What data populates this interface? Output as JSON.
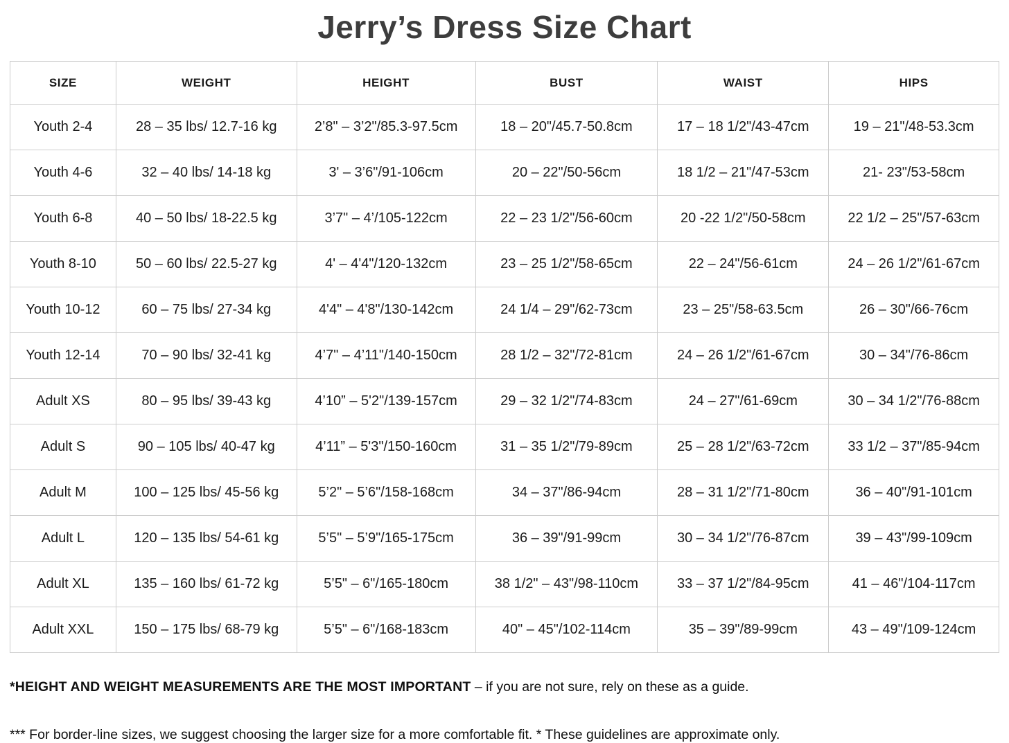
{
  "title": "Jerry’s Dress Size Chart",
  "table": {
    "headers": [
      "SIZE",
      "WEIGHT",
      "HEIGHT",
      "BUST",
      "WAIST",
      "HIPS"
    ],
    "column_widths_pct": [
      10.71,
      18.28,
      18.07,
      18.42,
      17.3,
      17.22
    ],
    "rows": [
      [
        "Youth 2-4",
        "28 – 35 lbs/ 12.7-16 kg",
        "2’8\" – 3’2\"/85.3-97.5cm",
        "18 – 20\"/45.7-50.8cm",
        "17 – 18 1/2\"/43-47cm",
        "19 – 21\"/48-53.3cm"
      ],
      [
        "Youth 4-6",
        "32 – 40 lbs/ 14-18 kg",
        "3' – 3’6\"/91-106cm",
        "20 – 22\"/50-56cm",
        "18 1/2 – 21\"/47-53cm",
        "21- 23\"/53-58cm"
      ],
      [
        "Youth 6-8",
        "40 – 50 lbs/ 18-22.5 kg",
        "3’7\" – 4’/105-122cm",
        "22 – 23 1/2\"/56-60cm",
        "20 -22 1/2\"/50-58cm",
        "22 1/2 – 25\"/57-63cm"
      ],
      [
        "Youth 8-10",
        "50 – 60 lbs/ 22.5-27 kg",
        "4' – 4'4\"/120-132cm",
        "23 – 25 1/2\"/58-65cm",
        "22 – 24\"/56-61cm",
        "24 – 26 1/2\"/61-67cm"
      ],
      [
        "Youth 10-12",
        "60 – 75 lbs/ 27-34 kg",
        "4'4\" – 4'8\"/130-142cm",
        "24 1/4 – 29\"/62-73cm",
        "23 – 25\"/58-63.5cm",
        "26 – 30\"/66-76cm"
      ],
      [
        "Youth 12-14",
        "70 – 90 lbs/ 32-41 kg",
        "4’7\" – 4’11\"/140-150cm",
        "28 1/2 – 32\"/72-81cm",
        "24 – 26 1/2\"/61-67cm",
        "30 – 34\"/76-86cm"
      ],
      [
        "Adult XS",
        "80 – 95 lbs/ 39-43 kg",
        "4’10” – 5'2\"/139-157cm",
        "29 – 32 1/2\"/74-83cm",
        "24 – 27\"/61-69cm",
        "30 – 34 1/2\"/76-88cm"
      ],
      [
        "Adult S",
        "90 – 105 lbs/ 40-47 kg",
        "4’11” – 5'3\"/150-160cm",
        "31 – 35 1/2\"/79-89cm",
        "25 – 28 1/2\"/63-72cm",
        "33 1/2 – 37\"/85-94cm"
      ],
      [
        "Adult M",
        "100 – 125 lbs/ 45-56 kg",
        "5’2\" – 5’6\"/158-168cm",
        "34 – 37\"/86-94cm",
        "28 – 31 1/2\"/71-80cm",
        "36 – 40\"/91-101cm"
      ],
      [
        "Adult L",
        "120 – 135 lbs/ 54-61 kg",
        "5’5\" – 5’9\"/165-175cm",
        "36 – 39\"/91-99cm",
        "30 – 34 1/2\"/76-87cm",
        "39 – 43\"/99-109cm"
      ],
      [
        "Adult XL",
        "135 – 160 lbs/ 61-72 kg",
        "5’5\" – 6\"/165-180cm",
        "38 1/2\" – 43\"/98-110cm",
        "33 – 37 1/2\"/84-95cm",
        "41 – 46\"/104-117cm"
      ],
      [
        "Adult XXL",
        "150 – 175 lbs/ 68-79 kg",
        "5’5\" – 6\"/168-183cm",
        "40\" – 45\"/102-114cm",
        "35 – 39\"/89-99cm",
        "43 – 49\"/109-124cm"
      ]
    ]
  },
  "footnotes": {
    "note1_bold": "*HEIGHT AND WEIGHT MEASUREMENTS ARE THE MOST IMPORTANT",
    "note1_rest": " – if you are not sure, rely on these as a guide.",
    "note2": "*** For border-line sizes, we suggest choosing the larger size for a more comfortable fit. * These guidelines are approximate only."
  },
  "colors": {
    "title_text": "#3d3d3d",
    "body_text": "#1b1b1b",
    "table_border": "#cccccc",
    "background": "#ffffff"
  }
}
